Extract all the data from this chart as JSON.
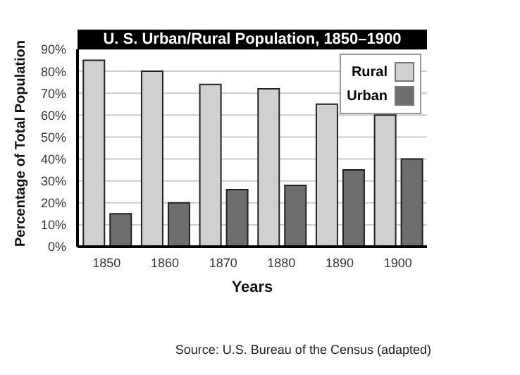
{
  "chart_data": {
    "type": "bar",
    "title": "U. S. Urban/Rural Population, 1850–1900",
    "xlabel": "Years",
    "ylabel": "Percentage of Total Population",
    "categories": [
      "1850",
      "1860",
      "1870",
      "1880",
      "1890",
      "1900"
    ],
    "series": [
      {
        "name": "Rural",
        "color": "#d0d0d0",
        "values": [
          85,
          80,
          74,
          72,
          65,
          60
        ]
      },
      {
        "name": "Urban",
        "color": "#6e6e6e",
        "values": [
          15,
          20,
          26,
          28,
          35,
          40
        ]
      }
    ],
    "ylim": [
      0,
      90
    ],
    "yticks": [
      {
        "value": 0,
        "label": "0%"
      },
      {
        "value": 10,
        "label": "10%"
      },
      {
        "value": 20,
        "label": "20%"
      },
      {
        "value": 30,
        "label": "30%"
      },
      {
        "value": 40,
        "label": "40%"
      },
      {
        "value": 50,
        "label": "50%"
      },
      {
        "value": 60,
        "label": "60%"
      },
      {
        "value": 70,
        "label": "70%"
      },
      {
        "value": 80,
        "label": "80%"
      },
      {
        "value": 90,
        "label": "90%"
      }
    ],
    "grid": "y",
    "legend": "top right",
    "annotations": [
      "Source: U.S. Bureau of the Census (adapted)"
    ]
  }
}
